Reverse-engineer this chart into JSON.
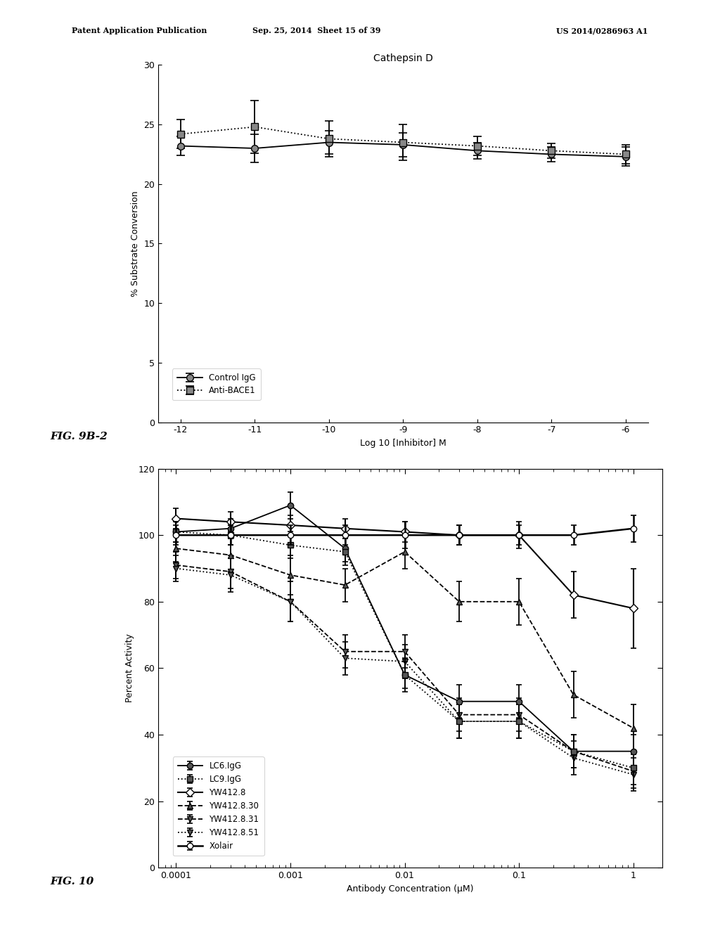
{
  "header_left": "Patent Application Publication",
  "header_mid": "Sep. 25, 2014  Sheet 15 of 39",
  "header_right": "US 2014/0286963 A1",
  "fig9b2_label": "FIG. 9B-2",
  "fig10_label": "FIG. 10",
  "plot1": {
    "title": "Cathepsin D",
    "xlabel": "Log 10 [Inhibitor] M",
    "ylabel": "% Substrate Conversion",
    "xlim": [
      -12,
      -6
    ],
    "ylim": [
      0,
      30
    ],
    "yticks": [
      0,
      5,
      10,
      15,
      20,
      25,
      30
    ],
    "xticks": [
      -12,
      -11,
      -10,
      -9,
      -8,
      -7,
      -6
    ],
    "xticklabels": [
      "-12",
      "-11",
      "-10",
      "-9",
      "-8",
      "-7",
      "-6"
    ],
    "control_igg_x": [
      -12,
      -11,
      -10,
      -9,
      -8,
      -7,
      -6
    ],
    "control_igg_y": [
      23.2,
      23.0,
      23.5,
      23.3,
      22.8,
      22.5,
      22.3
    ],
    "control_igg_yerr": [
      0.8,
      1.2,
      1.0,
      1.0,
      0.7,
      0.6,
      0.8
    ],
    "anti_bace1_x": [
      -12,
      -11,
      -10,
      -9,
      -8,
      -7,
      -6
    ],
    "anti_bace1_y": [
      24.2,
      24.8,
      23.8,
      23.5,
      23.2,
      22.8,
      22.5
    ],
    "anti_bace1_yerr": [
      1.2,
      2.2,
      1.5,
      1.5,
      0.8,
      0.6,
      0.8
    ],
    "legend_labels": [
      "Control IgG",
      "Anti-BACE1"
    ]
  },
  "plot2": {
    "xlabel": "Antibody Concentration (μM)",
    "ylabel": "Percent Activity",
    "ylim": [
      0,
      120
    ],
    "yticks": [
      0,
      20,
      40,
      60,
      80,
      100,
      120
    ],
    "LC6_IgG_x": [
      0.0001,
      0.0003,
      0.001,
      0.003,
      0.01,
      0.03,
      0.1,
      0.3,
      1.0
    ],
    "LC6_IgG_y": [
      101,
      102,
      109,
      96,
      58,
      50,
      50,
      35,
      35
    ],
    "LC6_IgG_yerr": [
      3,
      3,
      4,
      4,
      4,
      5,
      5,
      5,
      5
    ],
    "LC9_IgG_x": [
      0.0001,
      0.0003,
      0.001,
      0.003,
      0.01,
      0.03,
      0.1,
      0.3,
      1.0
    ],
    "LC9_IgG_y": [
      101,
      100,
      97,
      95,
      58,
      44,
      44,
      35,
      30
    ],
    "LC9_IgG_yerr": [
      3,
      3,
      4,
      4,
      5,
      5,
      5,
      5,
      5
    ],
    "YW412_8_x": [
      0.0001,
      0.0003,
      0.001,
      0.003,
      0.01,
      0.03,
      0.1,
      0.3,
      1.0
    ],
    "YW412_8_y": [
      105,
      104,
      103,
      102,
      101,
      100,
      100,
      82,
      78
    ],
    "YW412_8_yerr": [
      3,
      3,
      3,
      3,
      3,
      3,
      4,
      7,
      12
    ],
    "YW412_8_30_x": [
      0.0001,
      0.0003,
      0.001,
      0.003,
      0.01,
      0.03,
      0.1,
      0.3,
      1.0
    ],
    "YW412_8_30_y": [
      96,
      94,
      88,
      85,
      95,
      80,
      80,
      52,
      42
    ],
    "YW412_8_30_yerr": [
      4,
      5,
      6,
      5,
      5,
      6,
      7,
      7,
      7
    ],
    "YW412_8_31_x": [
      0.0001,
      0.0003,
      0.001,
      0.003,
      0.01,
      0.03,
      0.1,
      0.3,
      1.0
    ],
    "YW412_8_31_y": [
      91,
      89,
      80,
      65,
      65,
      46,
      46,
      35,
      29
    ],
    "YW412_8_31_yerr": [
      4,
      5,
      6,
      5,
      5,
      5,
      5,
      5,
      5
    ],
    "YW412_8_51_x": [
      0.0001,
      0.0003,
      0.001,
      0.003,
      0.01,
      0.03,
      0.1,
      0.3,
      1.0
    ],
    "YW412_8_51_y": [
      90,
      88,
      80,
      63,
      62,
      44,
      44,
      33,
      28
    ],
    "YW412_8_51_yerr": [
      4,
      5,
      6,
      5,
      5,
      5,
      5,
      5,
      5
    ],
    "Xolair_x": [
      0.0001,
      0.0003,
      0.001,
      0.003,
      0.01,
      0.03,
      0.1,
      0.3,
      1.0
    ],
    "Xolair_y": [
      100,
      100,
      100,
      100,
      100,
      100,
      100,
      100,
      102
    ],
    "Xolair_yerr": [
      3,
      3,
      3,
      3,
      4,
      3,
      3,
      3,
      4
    ],
    "legend_labels": [
      "LC6.IgG",
      "LC9.IgG",
      "YW412.8",
      "YW412.8.30",
      "YW412.8.31",
      "YW412.8.51",
      "Xolair"
    ]
  },
  "bg_color": "#ffffff",
  "text_color": "#000000",
  "font_size": 9,
  "title_font_size": 10
}
